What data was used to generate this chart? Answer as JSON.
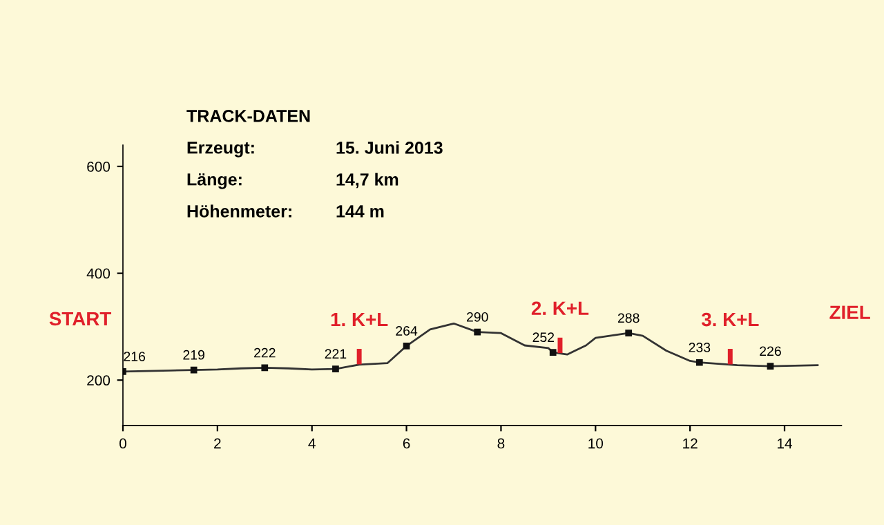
{
  "chart_data": {
    "type": "line",
    "x": [
      0,
      0.5,
      1,
      1.5,
      2,
      2.5,
      3,
      3.5,
      4,
      4.5,
      5,
      5.6,
      6,
      6.5,
      7,
      7.5,
      8,
      8.5,
      9,
      9.1,
      9.4,
      9.8,
      10,
      10.7,
      11,
      11.5,
      12,
      12.2,
      13,
      13.7,
      14.7
    ],
    "series": [
      {
        "color": "#333333",
        "values": [
          216,
          217,
          218,
          219,
          220,
          222,
          223,
          222,
          220,
          221,
          229,
          232,
          264,
          295,
          306,
          290,
          288,
          265,
          260,
          252,
          248,
          265,
          279,
          288,
          283,
          255,
          236,
          233,
          228,
          226,
          228
        ]
      }
    ],
    "xlim": [
      0,
      15.2
    ],
    "ylim": [
      115,
      640
    ],
    "xticks": [
      0,
      2,
      4,
      6,
      8,
      10,
      12,
      14
    ],
    "yticks": [
      200,
      400,
      600
    ],
    "grid": false,
    "legend": false,
    "marker": "none",
    "line_style": "solid",
    "value_labels": [
      [
        "216",
        null,
        null,
        "219",
        null,
        null,
        "222",
        null,
        null,
        "221",
        null,
        null,
        "264",
        null,
        null,
        "290",
        null,
        null,
        null,
        "252",
        null,
        null,
        null,
        "288",
        null,
        null,
        null,
        "233",
        null,
        "226",
        null
      ]
    ],
    "annotations": [
      {
        "text": "START",
        "x": 0,
        "y": 216
      },
      {
        "text": "1. K+L",
        "x": 5,
        "y": 229
      },
      {
        "text": "2. K+L",
        "x": 9.25,
        "y": 250
      },
      {
        "text": "3. K+L",
        "x": 12.85,
        "y": 229
      },
      {
        "text": "ZIEL",
        "x": 14.7,
        "y": 228
      },
      "TRACK-DATEN",
      "Erzeugt:",
      "15. Juni 2013",
      "Länge:",
      "14,7 km",
      "Höhenmeter:",
      "144 m"
    ]
  }
}
